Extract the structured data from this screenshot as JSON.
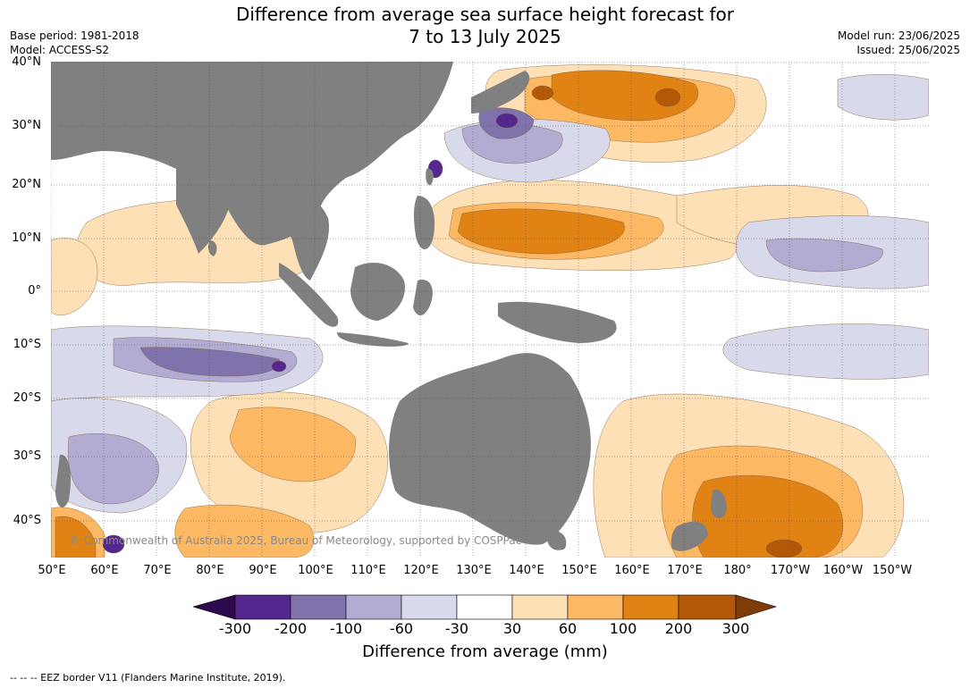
{
  "title": {
    "line1": "Difference from average sea surface height forecast for",
    "line2": "7 to 13 July 2025"
  },
  "meta_left": {
    "base_period": "Base period: 1981-2018",
    "model": "Model: ACCESS-S2"
  },
  "meta_right": {
    "model_run": "Model run: 23/06/2025",
    "issued": "Issued: 25/06/2025"
  },
  "lat_labels": [
    "40°N",
    "30°N",
    "20°N",
    "10°N",
    "0°",
    "10°S",
    "20°S",
    "30°S",
    "40°S"
  ],
  "lon_labels": [
    "50°E",
    "60°E",
    "70°E",
    "80°E",
    "90°E",
    "100°E",
    "110°E",
    "120°E",
    "130°E",
    "140°E",
    "150°E",
    "160°E",
    "170°E",
    "180°",
    "170°W",
    "160°W",
    "150°W"
  ],
  "copyright": "© Commonwealth of Australia 2025, Bureau of Meteorology, supported by COSPPac",
  "colorbar": {
    "title": "Difference from average (mm)",
    "tick_labels": [
      "-300",
      "-200",
      "-100",
      "-60",
      "-30",
      "30",
      "60",
      "100",
      "200",
      "300"
    ],
    "colors": [
      "#2d0a4e",
      "#54278f",
      "#8073ac",
      "#b2abd2",
      "#d8daeb",
      "#ffffff",
      "#fee0b6",
      "#fdb863",
      "#e08214",
      "#b35806",
      "#7f3b08"
    ],
    "land_color": "#808080"
  },
  "footnote": "--  --  -- EEZ border V11 (Flanders Marine Institute, 2019)."
}
